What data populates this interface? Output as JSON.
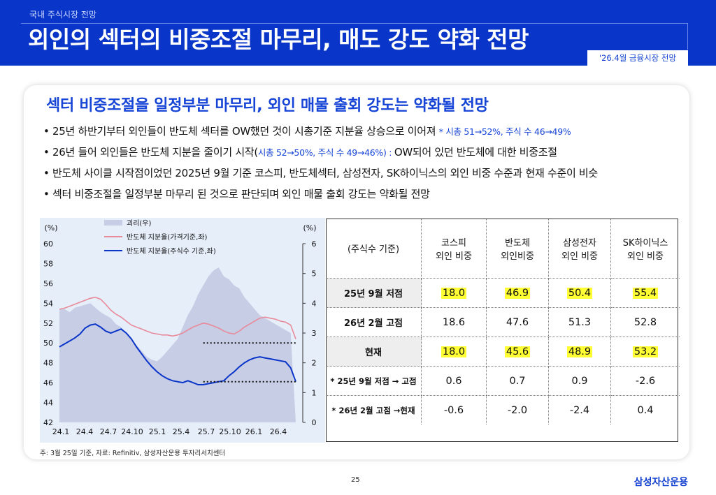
{
  "header": {
    "breadcrumb": "국내 주식시장 전망",
    "title": "외인의 섹터의 비중조절 마무리, 매도 강도 약화 전망",
    "tag": "'26.4월 금융시장 전망"
  },
  "subtitle": "섹터 비중조절을 일정부분 마무리, 외인 매물 출회 강도는 약화될 전망",
  "bullets": [
    {
      "text": "• 25년 하반기부터 외인들이 반도체 섹터를 OW했던 것이 시총기준 지분율 상승으로 이어져 ",
      "note": "* 시총 51→52%, 주식 수 46→49%"
    },
    {
      "text_a": "• 26년 들어 외인들은 반도체 지분을 줄이기 시작(",
      "note": "시총 52→50%, 주식 수 49→46%) : ",
      "text_b": "OW되어 있던 반도체에 대한 비중조절"
    },
    {
      "text": "• 반도체 사이클 시작점이었던 2025년 9월 기준 코스피, 반도체섹터, 삼성전자, SK하이닉스의 외인 비중 수준과 현재 수준이 비슷"
    },
    {
      "text": "• 섹터 비중조절을 일정부분 마무리 된 것으로 판단되며 외인 매물 출회 강도는 약화될 전망"
    }
  ],
  "chart_data": {
    "type": "line",
    "left_axis_label": "(%)",
    "right_axis_label": "(%)",
    "y_left": {
      "min": 42,
      "max": 60,
      "ticks": [
        "60",
        "58",
        "56",
        "54",
        "52",
        "50",
        "48",
        "46",
        "44",
        "42"
      ]
    },
    "y_right": {
      "min": 0,
      "max": 6,
      "ticks": [
        "6",
        "5",
        "4",
        "3",
        "2",
        "1",
        "0"
      ]
    },
    "x_ticks": [
      "24.1",
      "24.4",
      "24.7",
      "24.10",
      "25.1",
      "25.4",
      "25.7",
      "25.10",
      "26.1",
      "26.4"
    ],
    "legend": [
      "괴리(우)",
      "반도체 지분율(가격기준,좌)",
      "반도체 지분율(주식수 기준,좌)"
    ],
    "series": [
      {
        "name": "괴리(우)",
        "axis": "right",
        "type": "area",
        "color": "#c8cde6",
        "values": [
          3.8,
          3.8,
          3.7,
          3.85,
          3.9,
          3.95,
          4.0,
          3.85,
          3.7,
          3.6,
          3.5,
          3.3,
          3.2,
          3.0,
          2.8,
          2.6,
          2.4,
          2.2,
          2.1,
          2.05,
          2.2,
          2.4,
          2.6,
          2.8,
          3.2,
          3.6,
          3.9,
          4.3,
          4.6,
          4.9,
          5.1,
          5.2,
          4.9,
          4.8,
          4.6,
          4.5,
          4.2,
          4.0,
          3.8,
          3.6,
          3.5,
          3.4,
          3.3,
          3.2,
          3.1,
          3.0,
          0
        ]
      },
      {
        "name": "반도체 지분율(가격기준,좌)",
        "axis": "left",
        "type": "line",
        "color": "#e88a9a",
        "values": [
          53.4,
          53.5,
          53.7,
          53.9,
          54.1,
          54.3,
          54.5,
          54.6,
          54.4,
          53.9,
          53.3,
          52.9,
          52.6,
          52.2,
          51.8,
          51.6,
          51.4,
          51.2,
          51.0,
          50.9,
          50.8,
          50.8,
          50.7,
          50.8,
          51.0,
          51.3,
          51.6,
          51.8,
          52.0,
          51.9,
          51.7,
          51.5,
          51.2,
          51.0,
          50.9,
          51.2,
          51.6,
          51.9,
          52.2,
          52.5,
          52.6,
          52.5,
          52.4,
          52.2,
          52.1,
          51.8,
          50.4
        ]
      },
      {
        "name": "반도체 지분율(주식수 기준,좌)",
        "axis": "left",
        "type": "line",
        "color": "#0a35c9",
        "values": [
          49.6,
          49.9,
          50.2,
          50.5,
          50.9,
          51.5,
          51.8,
          51.9,
          51.6,
          51.2,
          51.0,
          51.2,
          51.4,
          51.0,
          50.4,
          49.6,
          48.9,
          48.2,
          47.6,
          47.1,
          46.7,
          46.4,
          46.2,
          46.1,
          46.0,
          46.2,
          46.0,
          45.8,
          45.8,
          45.9,
          46.0,
          46.1,
          46.2,
          46.7,
          47.1,
          47.6,
          48.0,
          48.3,
          48.5,
          48.6,
          48.5,
          48.4,
          48.3,
          48.2,
          48.1,
          47.5,
          46.1
        ]
      }
    ],
    "annotations": [
      {
        "type": "dotted-line",
        "axis": "left",
        "value": 50.0
      },
      {
        "type": "dotted-line",
        "axis": "left",
        "value": 46.1
      }
    ]
  },
  "table": {
    "headers": [
      "(주식수 기준)",
      "코스피\n외인 비중",
      "반도체\n외인비중",
      "삼성전자\n외인 비중",
      "SK하이닉스\n외인 비중"
    ],
    "rows": [
      {
        "label": "25년 9월 저점",
        "values": [
          "18.0",
          "46.9",
          "50.4",
          "55.4"
        ],
        "highlight": [
          true,
          true,
          true,
          true
        ],
        "shade": true
      },
      {
        "label": "26년 2월 고점",
        "values": [
          "18.6",
          "47.6",
          "51.3",
          "52.8"
        ],
        "highlight": [
          false,
          false,
          false,
          false
        ],
        "shade": false
      },
      {
        "label": "현재",
        "values": [
          "18.0",
          "45.6",
          "48.9",
          "53.2"
        ],
        "highlight": [
          true,
          true,
          true,
          true
        ],
        "shade": true
      },
      {
        "label": "* 25년 9월 저점 → 고점",
        "values": [
          "0.6",
          "0.7",
          "0.9",
          "-2.6"
        ],
        "highlight": [
          false,
          false,
          false,
          false
        ],
        "shade": false
      },
      {
        "label": "* 26년 2월 고점 →현재",
        "values": [
          "-0.6",
          "-2.0",
          "-2.4",
          "0.4"
        ],
        "highlight": [
          false,
          false,
          false,
          false
        ],
        "shade": false
      }
    ]
  },
  "footnote": "주: 3월 25일 기준, 자료: Refinitiv, 삼성자산운용 투자리서치센터",
  "page_number": "25",
  "brand": "삼성자산운용"
}
